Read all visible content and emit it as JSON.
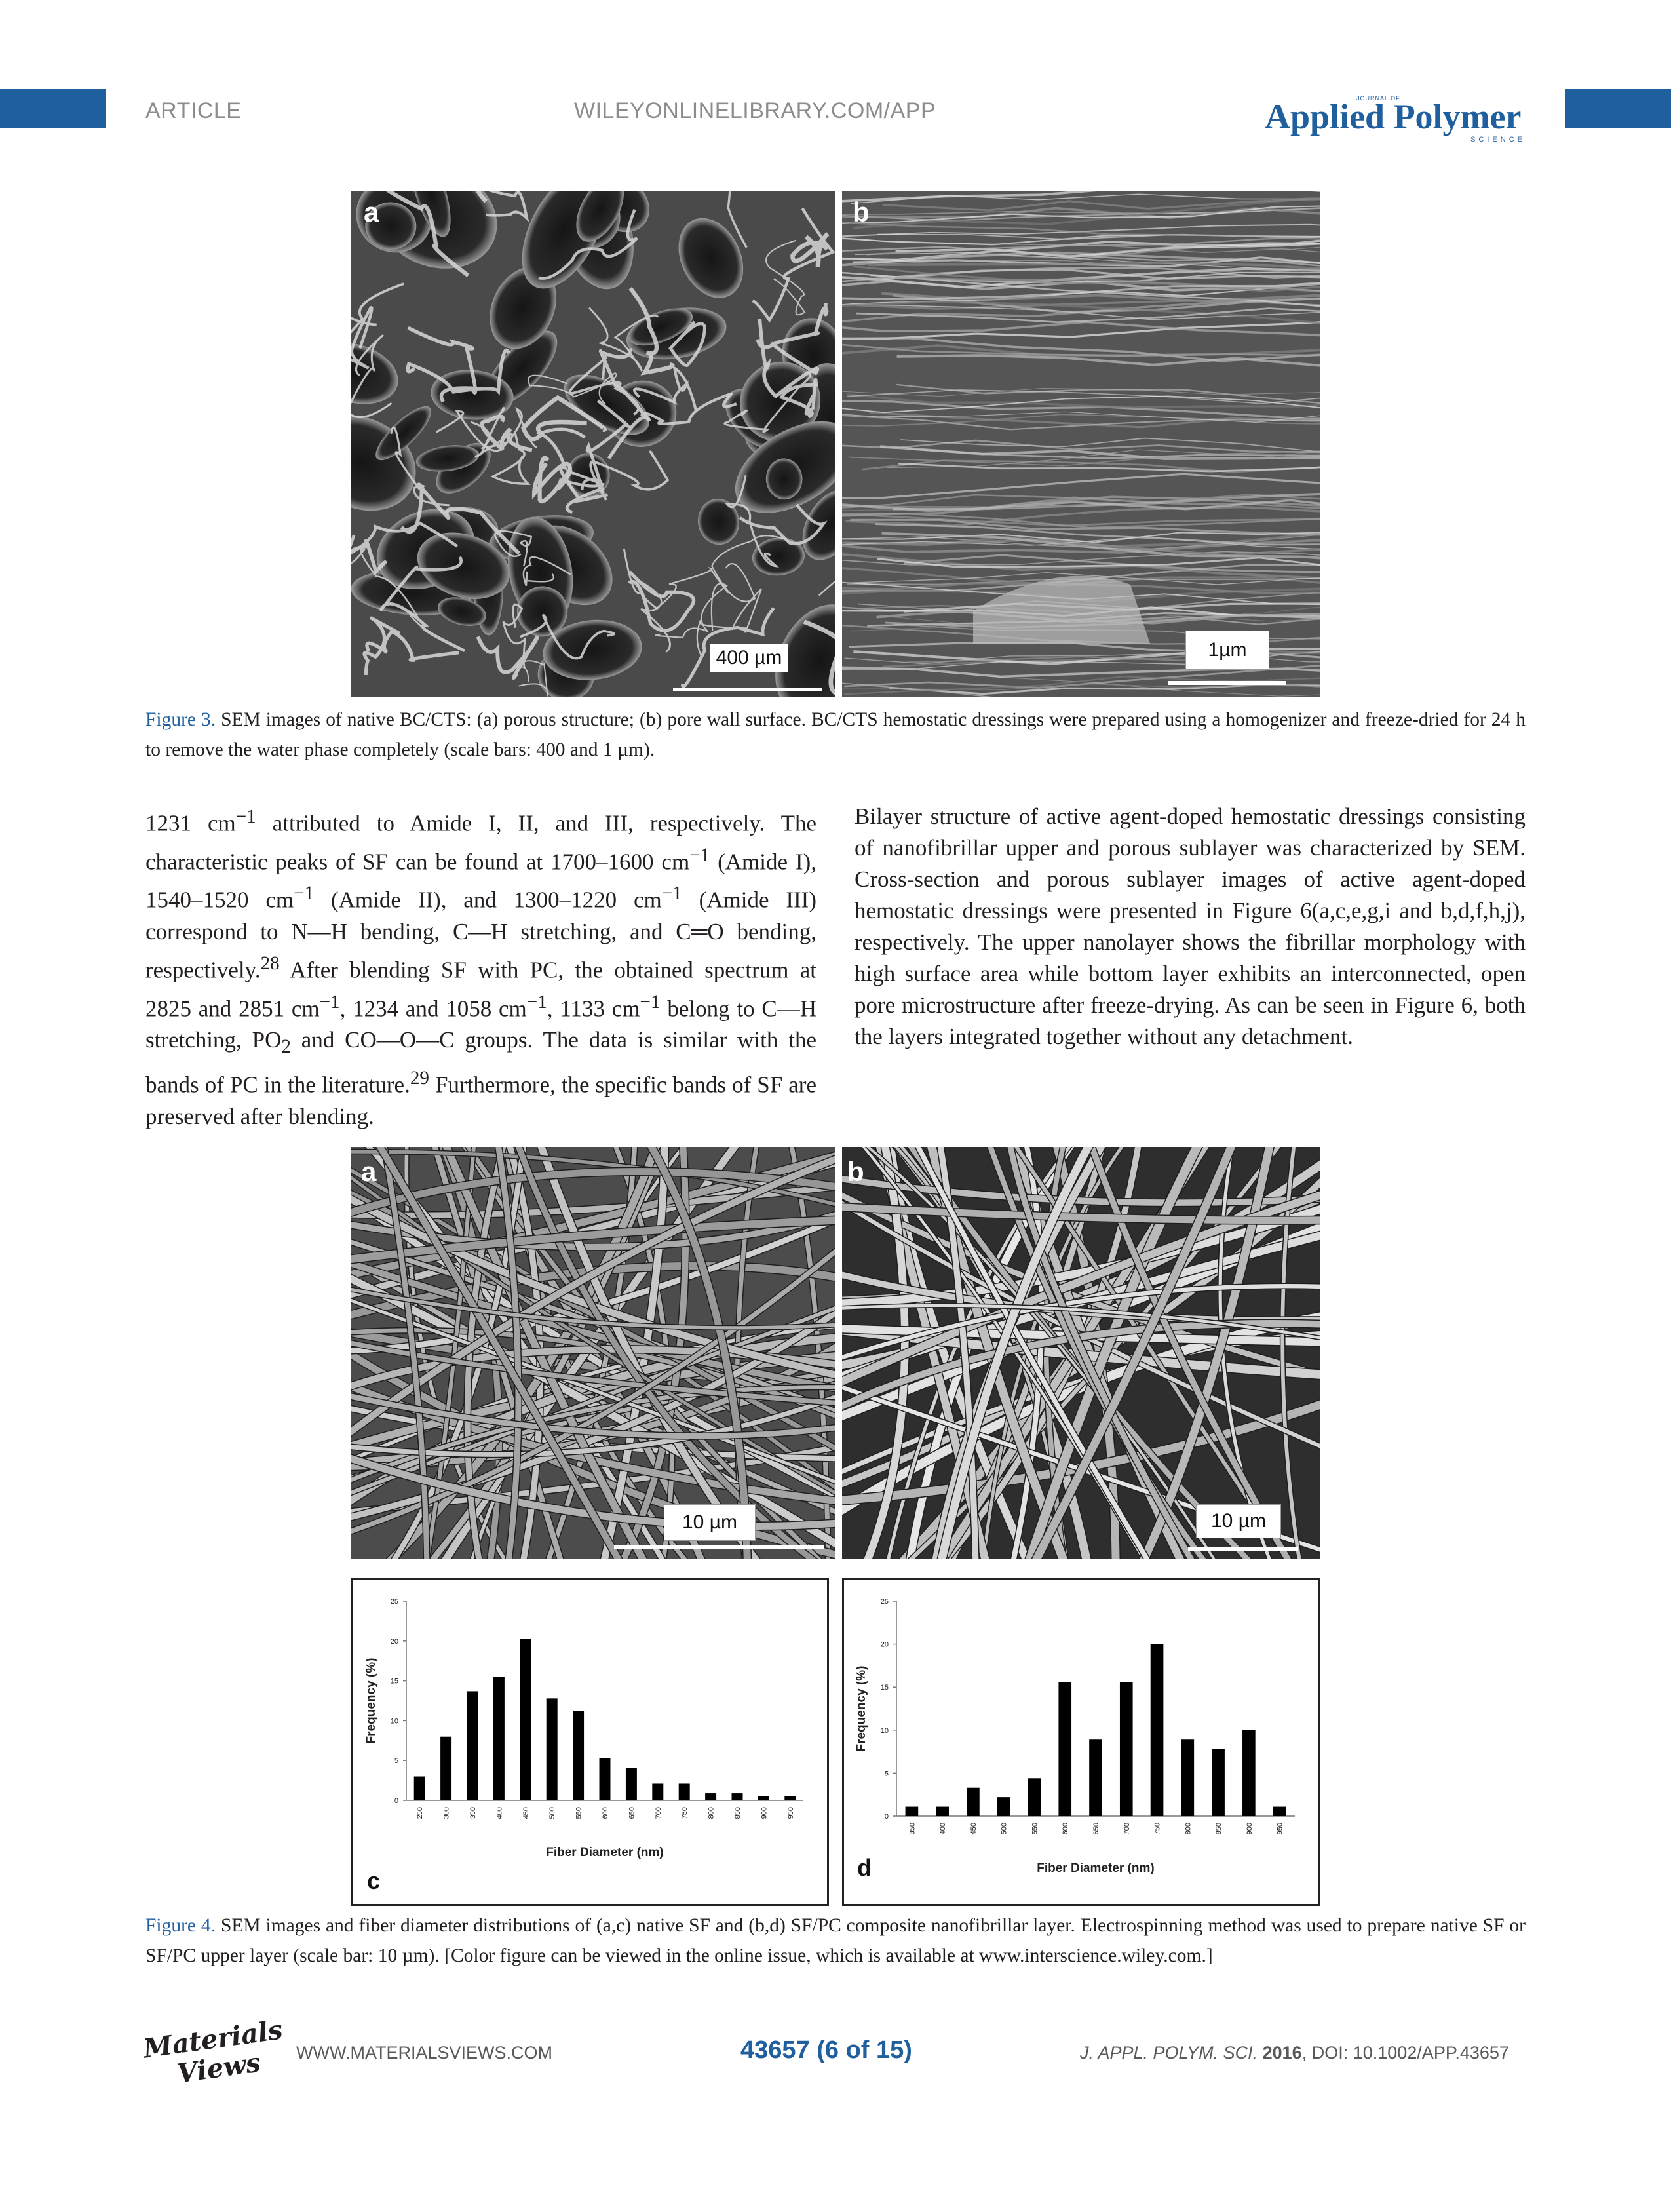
{
  "header": {
    "left_label": "ARTICLE",
    "center_label": "WILEYONLINELIBRARY.COM/APP",
    "journal_small": "JOURNAL OF",
    "journal_name": "Applied Polymer",
    "journal_sub": "SCIENCE",
    "accent_color": "#1f5f9e"
  },
  "figure3": {
    "panel_a_letter": "a",
    "panel_b_letter": "b",
    "panel_a_scale": "400 µm",
    "panel_b_scale": "1µm",
    "caption_label": "Figure 3.",
    "caption_text": " SEM images of native BC/CTS: (a) porous structure; (b) pore wall surface. BC/CTS hemostatic dressings were prepared using a homogenizer and freeze-dried for 24 h to remove the water phase completely (scale bars: 400 and 1 µm)."
  },
  "body": {
    "left_column": [
      "1231 cm",
      "−1",
      " attributed to Amide I, II, and III, respectively. The characteristic peaks of SF can be found at 1700–1600 cm",
      "−1",
      " (Amide I), 1540–1520 cm",
      "−1",
      " (Amide II), and 1300–1220 cm",
      "−1",
      " (Amide III) correspond to N—H bending, C—H stretching, and C═O bending, respectively.",
      "28",
      " After blending SF with PC, the obtained spectrum at 2825 and 2851 cm",
      "−1",
      ", 1234 and 1058 cm",
      "−1",
      ", 1133 cm",
      "−1",
      " belong to C—H stretching, PO",
      "2",
      " and CO—O—C groups. The data is similar with the bands of PC in the literature.",
      "29",
      " Furthermore, the specific bands of SF are preserved after blending."
    ],
    "right_column": "Bilayer structure of active agent-doped hemostatic dressings consisting of nanofibrillar upper and porous sublayer was characterized by SEM. Cross-section and porous sublayer images of active agent-doped hemostatic dressings were presented in Figure 6(a,c,e,g,i and b,d,f,h,j), respectively. The upper nanolayer shows the fibrillar morphology with high surface area while bottom layer exhibits an interconnected, open pore microstructure after freeze-drying. As can be seen in Figure 6, both the layers integrated together without any detachment."
  },
  "figure4": {
    "panel_a_letter": "a",
    "panel_b_letter": "b",
    "panel_a_scale": "10 µm",
    "panel_b_scale": "10 µm",
    "panel_c_letter": "c",
    "panel_d_letter": "d",
    "caption_label": "Figure 4.",
    "caption_text": " SEM images and fiber diameter distributions of (a,c) native SF and (b,d) SF/PC composite nanofibrillar layer. Electrospinning method was used to prepare native SF or SF/PC upper layer (scale bar: 10 µm). [Color figure can be viewed in the online issue, which is available at www.interscience.wiley.com.]"
  },
  "chart_data": [
    {
      "type": "bar",
      "panel": "c",
      "categories": [
        "250",
        "300",
        "350",
        "400",
        "450",
        "500",
        "550",
        "600",
        "650",
        "700",
        "750",
        "800",
        "850",
        "900",
        "950"
      ],
      "values": [
        3,
        8,
        13.7,
        15.5,
        20.3,
        12.8,
        11.2,
        5.3,
        4.1,
        2.1,
        2.1,
        0.9,
        0.9,
        0.5,
        0.5
      ],
      "xlabel": "Fiber Diameter (nm)",
      "ylabel": "Frequency (%)",
      "ylim": [
        0,
        25
      ],
      "yticks": [
        "0",
        "5",
        "10",
        "15",
        "20",
        "25"
      ],
      "grid": false
    },
    {
      "type": "bar",
      "panel": "d",
      "categories": [
        "350",
        "400",
        "450",
        "500",
        "550",
        "600",
        "650",
        "700",
        "750",
        "800",
        "850",
        "900",
        "950"
      ],
      "values": [
        1.1,
        1.1,
        3.3,
        2.2,
        4.4,
        15.6,
        8.9,
        15.6,
        20,
        8.9,
        7.8,
        10,
        1.1
      ],
      "xlabel": "Fiber Diameter (nm)",
      "ylabel": "Frequency (%)",
      "ylim": [
        0,
        25
      ],
      "yticks": [
        "0",
        "5",
        "10",
        "15",
        "20",
        "25"
      ],
      "grid": false
    }
  ],
  "footer": {
    "logo_line1": "Materials",
    "logo_line2": "Views",
    "website": "WWW.MATERIALSVIEWS.COM",
    "page": "43657 (6 of 15)",
    "citation_journal": "J. APPL. POLYM. SCI.",
    "citation_year": "2016",
    "citation_doi": ", DOI: 10.1002/APP.43657"
  }
}
